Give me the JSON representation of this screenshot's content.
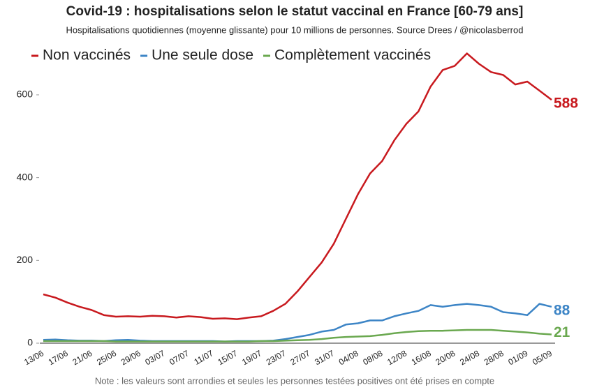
{
  "chart_data": {
    "type": "line",
    "title": "Covid-19 : hospitalisations selon le statut vaccinal en France [60-79 ans]",
    "subtitle": "Hospitalisations quotidiennes (moyenne glissante) pour 10 millions de personnes. Source Drees / @nicolasberrod",
    "note": "Note : les valeurs sont arrondies et seules les personnes testées positives ont été prises en compte",
    "categories": [
      "13/06",
      null,
      "17/06",
      null,
      "21/06",
      null,
      "25/06",
      null,
      "29/06",
      null,
      "03/07",
      null,
      "07/07",
      null,
      "11/07",
      null,
      "15/07",
      null,
      "19/07",
      null,
      "23/07",
      null,
      "27/07",
      null,
      "31/07",
      null,
      "04/08",
      null,
      "08/08",
      null,
      "12/08",
      null,
      "16/08",
      null,
      "20/08",
      null,
      "24/08",
      null,
      "28/08",
      null,
      "01/09",
      null,
      "05/09"
    ],
    "series": [
      {
        "name": "Non vaccinés",
        "color": "#c8191e",
        "values": [
          118,
          110,
          98,
          88,
          80,
          68,
          64,
          65,
          64,
          66,
          65,
          62,
          65,
          63,
          59,
          60,
          58,
          62,
          65,
          78,
          95,
          125,
          160,
          195,
          240,
          300,
          360,
          410,
          440,
          490,
          530,
          560,
          620,
          660,
          670,
          700,
          675,
          655,
          648,
          625,
          632,
          610,
          588
        ]
      },
      {
        "name": "Une seule dose",
        "color": "#3d85c6",
        "values": [
          8,
          9,
          7,
          6,
          6,
          5,
          7,
          8,
          6,
          5,
          5,
          5,
          5,
          5,
          5,
          4,
          5,
          5,
          5,
          6,
          10,
          15,
          20,
          28,
          32,
          45,
          48,
          55,
          55,
          65,
          72,
          78,
          92,
          88,
          92,
          95,
          92,
          88,
          75,
          72,
          68,
          95,
          88
        ]
      },
      {
        "name": "Complètement vaccinés",
        "color": "#6aa84f",
        "values": [
          5,
          5,
          5,
          5,
          5,
          5,
          4,
          4,
          4,
          4,
          4,
          4,
          4,
          4,
          4,
          4,
          4,
          4,
          5,
          5,
          6,
          7,
          8,
          10,
          13,
          15,
          16,
          17,
          20,
          24,
          27,
          29,
          30,
          30,
          31,
          32,
          32,
          32,
          30,
          28,
          26,
          23,
          21
        ]
      }
    ],
    "ylim": [
      0,
      710
    ],
    "yticks": [
      0,
      200,
      400,
      600
    ],
    "grid": false,
    "legend": "top"
  }
}
